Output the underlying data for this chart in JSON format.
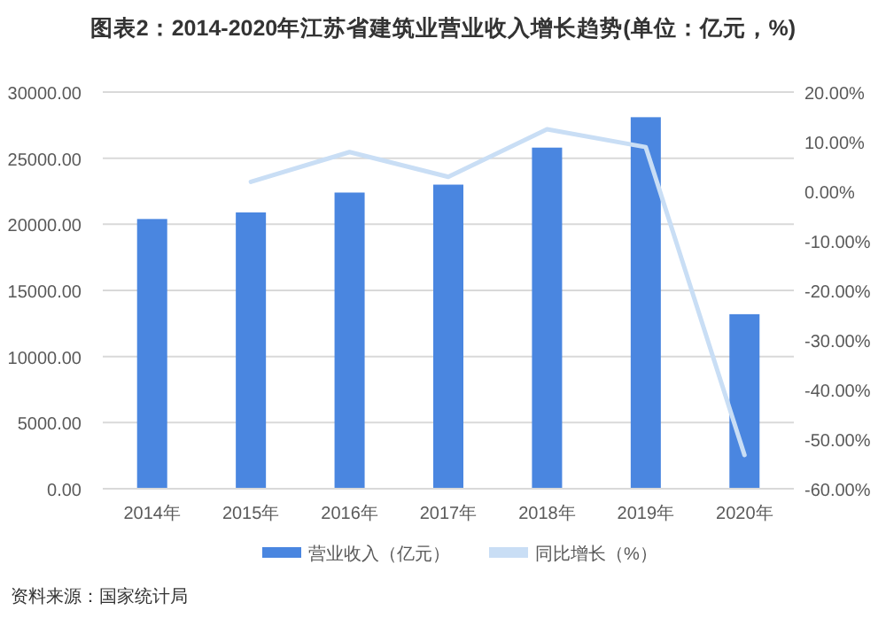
{
  "chart_data": {
    "type": "bar",
    "title": "图表2：2014-2020年江苏省建筑业营业收入增长趋势(单位：亿元，%)",
    "categories": [
      "2014年",
      "2015年",
      "2016年",
      "2017年",
      "2018年",
      "2019年",
      "2020年"
    ],
    "series": [
      {
        "name": "营业收入（亿元）",
        "color": "#4a86e0",
        "values": [
          20400,
          20900,
          22400,
          23000,
          25800,
          28100,
          13200
        ]
      },
      {
        "name": "同比增长（%）",
        "type": "line",
        "axis": "y2",
        "color": "#c9def5",
        "values": [
          null,
          1.9,
          7.9,
          2.9,
          12.5,
          8.9,
          -53.2
        ]
      }
    ],
    "ylim": [
      0,
      30000
    ],
    "yticks": [
      {
        "value": 0,
        "label": "0.00"
      },
      {
        "value": 5000,
        "label": "5000.00"
      },
      {
        "value": 10000,
        "label": "10000.00"
      },
      {
        "value": 15000,
        "label": "15000.00"
      },
      {
        "value": 20000,
        "label": "20000.00"
      },
      {
        "value": 25000,
        "label": "25000.00"
      },
      {
        "value": 30000,
        "label": "30000.00"
      }
    ],
    "y2lim": [
      -60,
      20
    ],
    "y2ticks": [
      {
        "value": -60,
        "label": "-60.00%"
      },
      {
        "value": -50,
        "label": "-50.00%"
      },
      {
        "value": -40,
        "label": "-40.00%"
      },
      {
        "value": -30,
        "label": "-30.00%"
      },
      {
        "value": -20,
        "label": "-20.00%"
      },
      {
        "value": -10,
        "label": "-10.00%"
      },
      {
        "value": 0,
        "label": "0.00%"
      },
      {
        "value": 10,
        "label": "10.00%"
      },
      {
        "value": 20,
        "label": "20.00%"
      }
    ],
    "grid": "y",
    "legend": "bottom",
    "marker": "none",
    "annotations": [
      "资料来源：国家统计局"
    ]
  }
}
